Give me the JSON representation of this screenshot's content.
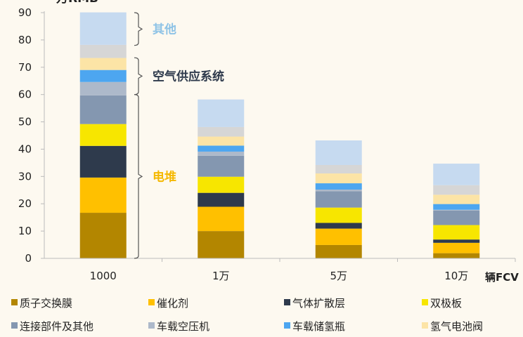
{
  "chart_data": {
    "type": "stacked-bar",
    "ylabel": "万RMB",
    "xlabel": "辆FCV",
    "ylim": [
      0,
      90
    ],
    "yticks": [
      0,
      10,
      20,
      30,
      40,
      50,
      60,
      70,
      80,
      90
    ],
    "grid": false,
    "legend_placement": "bottom",
    "categories": [
      "1000",
      "1万",
      "5万",
      "10万"
    ],
    "series": [
      {
        "name": "质子交换膜",
        "color": "#b38600",
        "values": [
          16.7,
          10.0,
          4.9,
          1.9
        ]
      },
      {
        "name": "催化剂",
        "color": "#ffc000",
        "values": [
          12.9,
          8.9,
          6.0,
          3.8
        ]
      },
      {
        "name": "气体扩散层",
        "color": "#2e3a4c",
        "values": [
          11.6,
          5.1,
          2.1,
          1.2
        ]
      },
      {
        "name": "双极板",
        "color": "#f7e600",
        "values": [
          8.0,
          5.9,
          5.6,
          5.3
        ]
      },
      {
        "name": "连接部件及其他",
        "color": "#8497b0",
        "values": [
          10.5,
          7.7,
          6.0,
          5.3
        ]
      },
      {
        "name": "车载空压机",
        "color": "#adb9ca",
        "values": [
          4.9,
          1.5,
          0.6,
          0.3
        ]
      },
      {
        "name": "车载储氢瓶",
        "color": "#4da6f0",
        "values": [
          4.4,
          2.2,
          2.3,
          2.1
        ]
      },
      {
        "name": "氢气电池阀",
        "color": "#fce4a6",
        "values": [
          4.4,
          3.3,
          3.6,
          3.4
        ]
      },
      {
        "name": "",
        "color": "#d6d6d6",
        "values": [
          4.8,
          3.5,
          3.1,
          3.5
        ]
      },
      {
        "name": "",
        "color": "#c6daf0",
        "values": [
          11.9,
          10.1,
          9.0,
          7.9
        ]
      }
    ],
    "annotations": [
      {
        "text": "其他",
        "range": [
          78,
          90
        ],
        "color": "#8ec3e6"
      },
      {
        "text": "空气供应系统",
        "range": [
          60,
          73.5
        ],
        "color": "#2e3a4c"
      },
      {
        "text": "电堆",
        "range": [
          0,
          60
        ],
        "color": "#f5b800"
      }
    ]
  }
}
